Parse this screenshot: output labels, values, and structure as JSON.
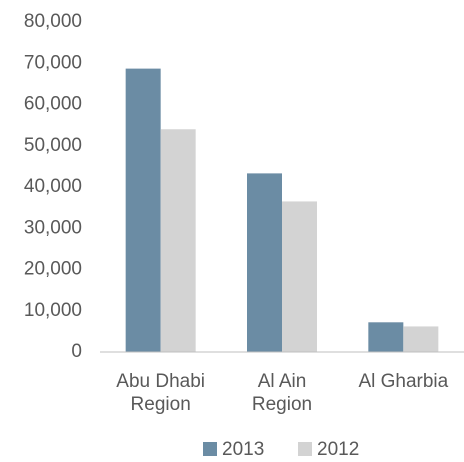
{
  "chart_data": {
    "type": "bar",
    "categories": [
      "Abu Dhabi Region",
      "Al Ain Region",
      "Al Gharbia"
    ],
    "series": [
      {
        "name": "2013",
        "color": "#6b8ca4",
        "values": [
          68700,
          43300,
          7200
        ]
      },
      {
        "name": "2012",
        "color": "#d3d3d3",
        "values": [
          54000,
          36500,
          6200
        ]
      }
    ],
    "ylim": [
      0,
      80000
    ],
    "yticks": [
      0,
      {
        "value": 10000,
        "label": "10,000"
      },
      {
        "value": 20000,
        "label": "20,000"
      },
      {
        "value": 30000,
        "label": "30,000"
      },
      {
        "value": 40000,
        "label": "40,000"
      },
      {
        "value": 50000,
        "label": "50,000"
      },
      {
        "value": 60000,
        "label": "60,000"
      },
      {
        "value": 70000,
        "label": "70,000"
      },
      {
        "value": 80000,
        "label": "80,000"
      }
    ],
    "grid": false,
    "legend": "bottom"
  }
}
